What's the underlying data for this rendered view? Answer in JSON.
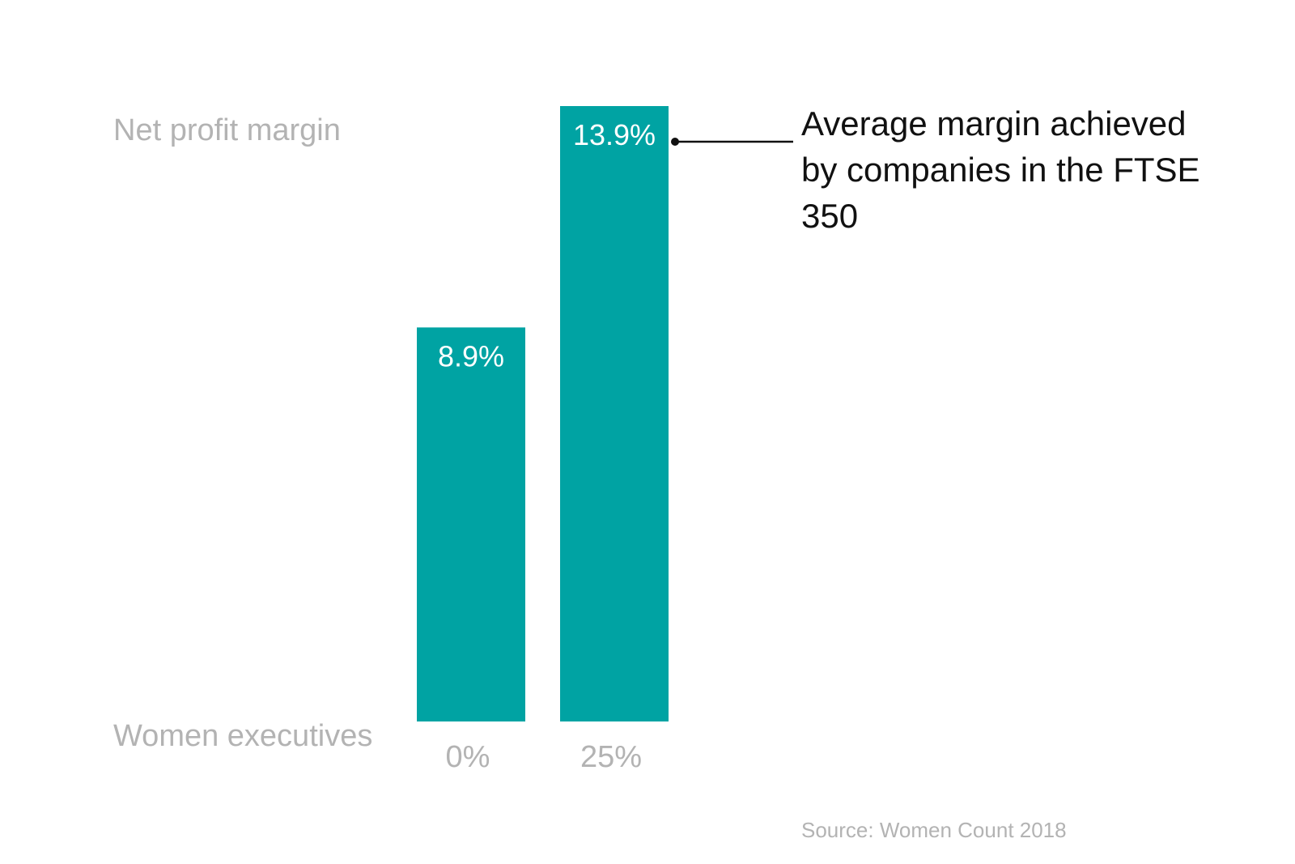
{
  "chart_data": {
    "type": "bar",
    "categories": [
      "0%",
      "25%"
    ],
    "values": [
      8.9,
      13.9
    ],
    "data_labels": [
      "8.9%",
      "13.9%"
    ],
    "ylabel": "Net profit margin",
    "xlabel": "Women executives",
    "ylim": [
      0,
      13.9
    ],
    "grid": false,
    "bar_color": "#00a3a3",
    "annotation": {
      "text": "Average margin achieved by companies in the FTSE 350",
      "target_category": "25%"
    },
    "source": "Source: Women Count 2018"
  }
}
